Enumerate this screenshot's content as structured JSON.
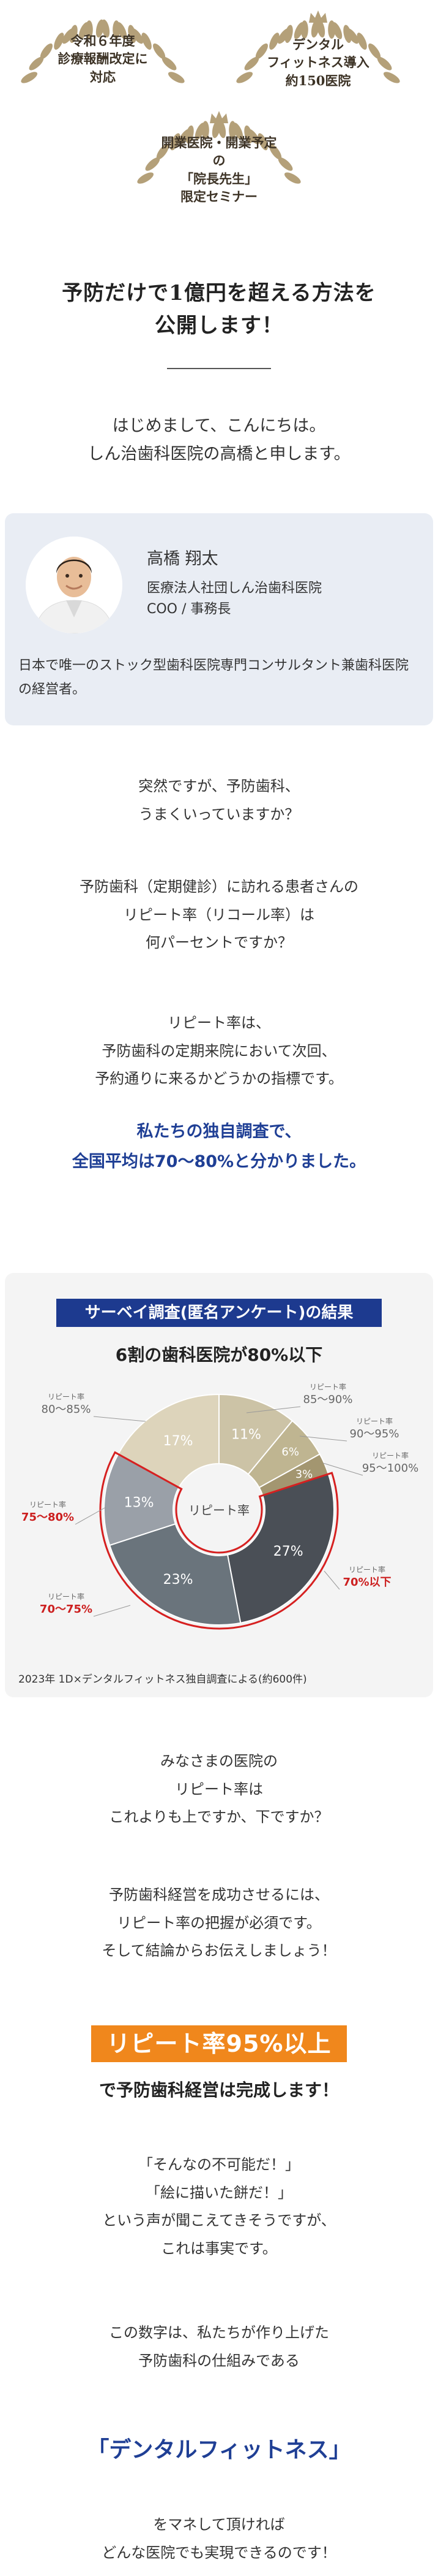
{
  "hero": {
    "badge_left": [
      "令和６年度",
      "診療報酬改定に",
      "対応"
    ],
    "badge_right": [
      "デンタル",
      "フィットネス導入",
      "約150医院"
    ],
    "badge_center": [
      "開業医院・開業予定の",
      "「院長先生」",
      "限定セミナー"
    ],
    "colors": {
      "laurel": "#b4a079",
      "text": "#3d3326"
    }
  },
  "section_title": [
    "予防だけで1億円を超える方法を",
    "公開します！"
  ],
  "greeting": [
    "はじめまして、こんにちは。",
    "しん治歯科医院の高橋と申します。"
  ],
  "profile": {
    "name": "高橋 翔太",
    "org": [
      "医療法人社団しん治歯科医院",
      "COO / 事務長"
    ],
    "desc": "日本で唯一のストック型歯科医院専門コンサルタント兼歯科医院の経営者。"
  },
  "body1": [
    "突然ですが、予防歯科、",
    "うまくいっていますか？"
  ],
  "body2": [
    "予防歯科（定期健診）に訪れる患者さんの",
    "リピート率（リコール率）は",
    "何パーセントですか？"
  ],
  "body3": [
    "リピート率は、",
    "予防歯科の定期来院において次回、",
    "予約通りに来るかどうかの指標です。"
  ],
  "highlight": [
    "私たちの独自調査で、",
    "全国平均は70〜80%と分かりました。"
  ],
  "survey": {
    "header": "サーベイ調査(匿名アンケート)の結果",
    "subtitle": "6割の歯科医院が80%以下",
    "center_label": "リピート率",
    "source": "2023年 1D×デンタルフィットネス独自調査による(約600件)",
    "label_prefix": "リピート率"
  },
  "chart_data": {
    "type": "pie",
    "title": "6割の歯科医院が80%以下",
    "categories": [
      "85〜90%",
      "90〜95%",
      "95〜100%",
      "70%以下",
      "70〜75%",
      "75〜80%",
      "80〜85%"
    ],
    "values": [
      11,
      6,
      3,
      27,
      23,
      13,
      17
    ],
    "colors": [
      "#ccc3a6",
      "#bfb591",
      "#a39670",
      "#4a4f56",
      "#6a747c",
      "#9aa0a8",
      "#ddd4bb"
    ],
    "label_colors": [
      "#666666",
      "#666666",
      "#666666",
      "#cc1f1f",
      "#cc1f1f",
      "#cc1f1f",
      "#666666"
    ]
  },
  "body4": [
    "みなさまの医院の",
    "リピート率は",
    "これよりも上ですか、下ですか？"
  ],
  "body5": [
    "予防歯科経営を成功させるには、",
    "リピート率の把握が必須です。",
    "そして結論からお伝えしましょう！"
  ],
  "orange_tag": "リピート率95%以上",
  "statement": "で予防歯科経営は完成します！",
  "body6": [
    "「そんなの不可能だ！」",
    "「絵に描いた餅だ！」",
    "という声が聞こえてきそうですが、",
    "これは事実です。"
  ],
  "body7": [
    "この数字は、私たちが作り上げた",
    "予防歯科の仕組みである"
  ],
  "df_name": "「デンタルフィットネス」",
  "body8": [
    "をマネして頂ければ",
    "どんな医院でも実現できるのです！"
  ]
}
